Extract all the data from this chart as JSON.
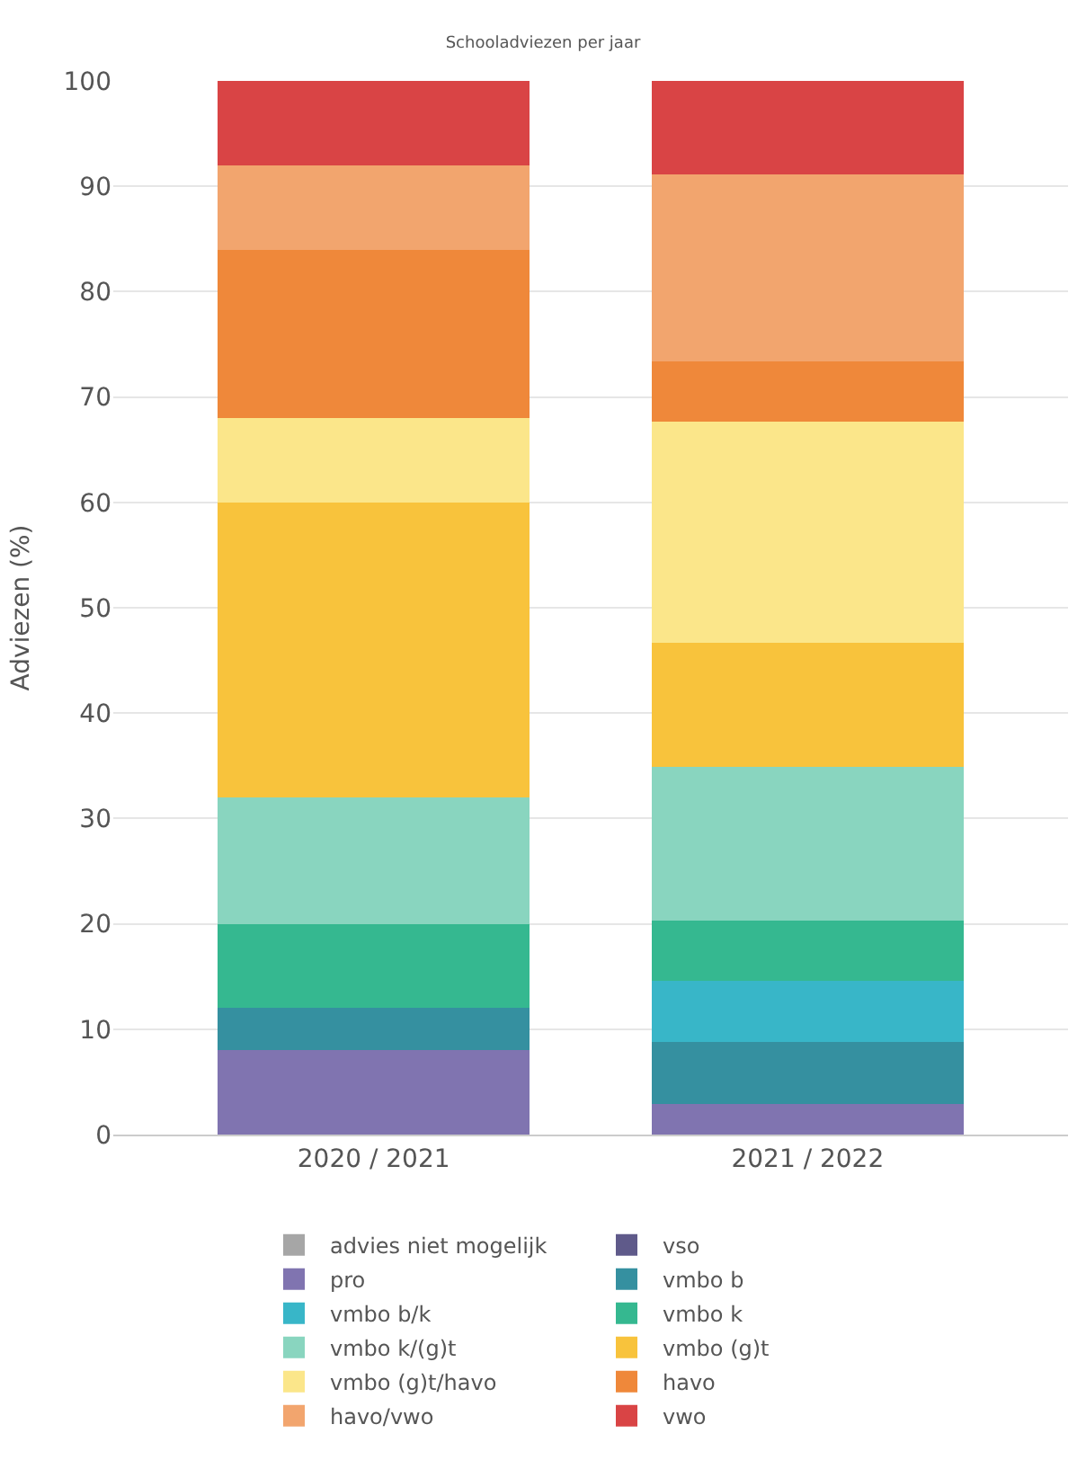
{
  "chart_data": {
    "type": "bar",
    "stacked": true,
    "title": "Schooladviezen per jaar",
    "ylabel": "Adviezen (%)",
    "categories": [
      "2020 / 2021",
      "2021 / 2022"
    ],
    "series": [
      {
        "name": "advies niet mogelijk",
        "color": "#a6a6a6",
        "values": [
          0,
          0
        ]
      },
      {
        "name": "vso",
        "color": "#5f5a8a",
        "values": [
          0,
          0
        ]
      },
      {
        "name": "pro",
        "color": "#8074b0",
        "values": [
          8,
          2.9
        ]
      },
      {
        "name": "vmbo b",
        "color": "#3590a0",
        "values": [
          4,
          5.9
        ]
      },
      {
        "name": "vmbo b/k",
        "color": "#38b6c8",
        "values": [
          0,
          5.8
        ]
      },
      {
        "name": "vmbo k",
        "color": "#35b890",
        "values": [
          8,
          5.7
        ]
      },
      {
        "name": "vmbo k/(g)t",
        "color": "#89d5bf",
        "values": [
          12,
          14.6
        ]
      },
      {
        "name": "vmbo (g)t",
        "color": "#f8c33c",
        "values": [
          28,
          11.8
        ]
      },
      {
        "name": "vmbo (g)t/havo",
        "color": "#fbe68a",
        "values": [
          8,
          21.0
        ]
      },
      {
        "name": "havo",
        "color": "#ef883a",
        "values": [
          16,
          5.7
        ]
      },
      {
        "name": "havo/vwo",
        "color": "#f2a56e",
        "values": [
          8,
          17.7
        ]
      },
      {
        "name": "vwo",
        "color": "#d94445",
        "values": [
          8,
          8.9
        ]
      }
    ],
    "ylim": [
      0,
      100
    ],
    "yticks": [
      0,
      10,
      20,
      30,
      40,
      50,
      60,
      70,
      80,
      90,
      100
    ],
    "grid": "y",
    "legend": "bottom"
  }
}
